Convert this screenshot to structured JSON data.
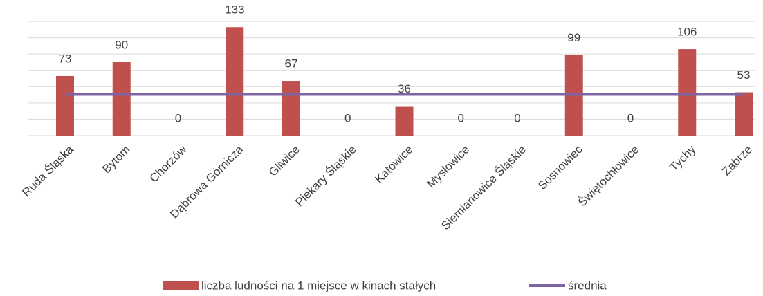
{
  "chart_data": {
    "type": "bar",
    "categories": [
      "Ruda Śląska",
      "Bytom",
      "Chorzów",
      "Dąbrowa Górnicza",
      "Gliwice",
      "Piekary Śląskie",
      "Katowice",
      "Mysłowice",
      "Siemianowice Śląskie",
      "Sosnowiec",
      "Świętochłowice",
      "Tychy",
      "Zabrze"
    ],
    "series": [
      {
        "name": "liczba ludności na 1 miejsce w kinach stałych",
        "type": "bar",
        "color": "#c0504d",
        "values": [
          73,
          90,
          0,
          133,
          67,
          0,
          36,
          0,
          0,
          99,
          0,
          106,
          53
        ]
      },
      {
        "name": "średnia",
        "type": "line",
        "color": "#8064a2",
        "values": [
          50.5,
          50.5,
          50.5,
          50.5,
          50.5,
          50.5,
          50.5,
          50.5,
          50.5,
          50.5,
          50.5,
          50.5,
          50.5
        ]
      }
    ],
    "ylim": [
      0,
      140
    ],
    "yticks": [
      0,
      20,
      40,
      60,
      80,
      100,
      120,
      140
    ],
    "grid": true,
    "legend": "bottom"
  }
}
